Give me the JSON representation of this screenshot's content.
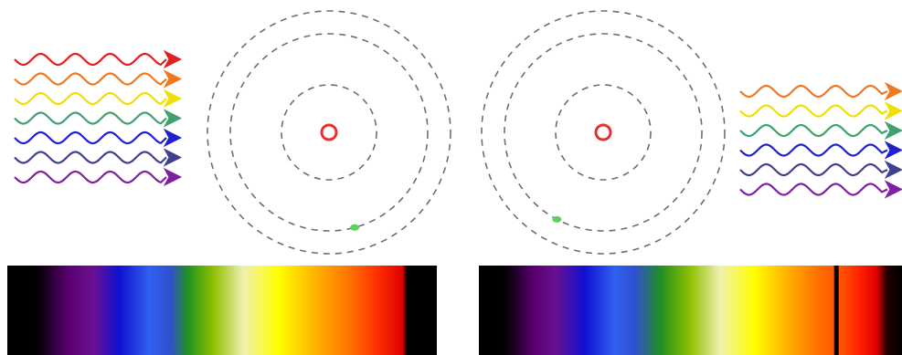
{
  "colors": {
    "background": "#ffffff",
    "orbit": "#6e6e6e",
    "nucleus": "#e8302a",
    "electron": "#5ad35a",
    "absorption_line": "#000000"
  },
  "incoming_light": {
    "direction": "right",
    "waves": [
      "#e02020",
      "#f07820",
      "#f0e000",
      "#40a070",
      "#2020d0",
      "#404090",
      "#8020a0"
    ]
  },
  "outgoing_light": {
    "direction": "right",
    "waves": [
      "#f07820",
      "#f0e000",
      "#40a070",
      "#2020d0",
      "#404090",
      "#8020a0"
    ]
  },
  "atoms": [
    {
      "name": "atom-before",
      "orbit_count": 3,
      "electron_orbit": 2,
      "electron_angle_deg": 75
    },
    {
      "name": "atom-after",
      "orbit_count": 3,
      "electron_orbit": 2,
      "electron_angle_deg": 118
    }
  ],
  "spectra": {
    "continuous": {
      "stops": [
        {
          "offset": 0.0,
          "color": "#000000"
        },
        {
          "offset": 0.07,
          "color": "#000000"
        },
        {
          "offset": 0.14,
          "color": "#5a0070"
        },
        {
          "offset": 0.2,
          "color": "#6a1090"
        },
        {
          "offset": 0.26,
          "color": "#1010d0"
        },
        {
          "offset": 0.33,
          "color": "#3060f0"
        },
        {
          "offset": 0.38,
          "color": "#3050d0"
        },
        {
          "offset": 0.42,
          "color": "#209020"
        },
        {
          "offset": 0.48,
          "color": "#90c000"
        },
        {
          "offset": 0.55,
          "color": "#f0f0b0"
        },
        {
          "offset": 0.63,
          "color": "#ffff00"
        },
        {
          "offset": 0.72,
          "color": "#ffb000"
        },
        {
          "offset": 0.8,
          "color": "#ff7000"
        },
        {
          "offset": 0.86,
          "color": "#ff3000"
        },
        {
          "offset": 0.92,
          "color": "#e00000"
        },
        {
          "offset": 0.93,
          "color": "#000000"
        },
        {
          "offset": 1.0,
          "color": "#000000"
        }
      ]
    },
    "absorption": {
      "stops": [
        {
          "offset": 0.0,
          "color": "#000000"
        },
        {
          "offset": 0.06,
          "color": "#000000"
        },
        {
          "offset": 0.13,
          "color": "#5a0070"
        },
        {
          "offset": 0.18,
          "color": "#6a1090"
        },
        {
          "offset": 0.25,
          "color": "#1010d0"
        },
        {
          "offset": 0.32,
          "color": "#3060f0"
        },
        {
          "offset": 0.37,
          "color": "#3050d0"
        },
        {
          "offset": 0.43,
          "color": "#209020"
        },
        {
          "offset": 0.5,
          "color": "#90c000"
        },
        {
          "offset": 0.57,
          "color": "#f0f0b0"
        },
        {
          "offset": 0.65,
          "color": "#ffff00"
        },
        {
          "offset": 0.73,
          "color": "#ffb000"
        },
        {
          "offset": 0.8,
          "color": "#ff7000"
        },
        {
          "offset": 0.86,
          "color": "#ff5000"
        },
        {
          "offset": 0.9,
          "color": "#ff2000"
        },
        {
          "offset": 0.94,
          "color": "#e00000"
        },
        {
          "offset": 0.965,
          "color": "#200000"
        },
        {
          "offset": 1.0,
          "color": "#000000"
        }
      ],
      "absorption_line_position": 0.845
    }
  }
}
